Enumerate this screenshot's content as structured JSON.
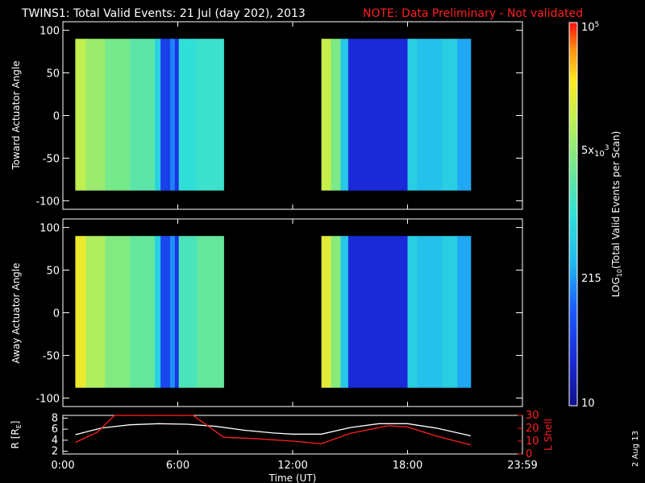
{
  "header": {
    "title": "TWINS1: Total Valid Events: 21 Jul (day 202), 2013",
    "note": "NOTE: Data Preliminary - Not validated",
    "note_color": "#ff2020"
  },
  "stamp": "2 Aug 13",
  "colors": {
    "background": "#000000",
    "axes": "#ffffff",
    "lshell": "#ff2020",
    "radius": "#ffffff"
  },
  "chart_data": [
    {
      "type": "heatmap",
      "panel": "toward",
      "ylabel": "Toward Actuator Angle",
      "ylim": [
        -110,
        110
      ],
      "y_ticks": [
        "100",
        "50",
        "0",
        "-50",
        "-100"
      ],
      "y_tick_values": [
        100,
        50,
        0,
        -50,
        -100
      ],
      "xlim_hours": [
        0,
        24
      ],
      "data_y_range": [
        -88,
        90
      ],
      "colorscale": "log10 total valid events per scan",
      "coverage_hours": [
        [
          0.65,
          8.4
        ],
        [
          13.5,
          21.3
        ]
      ],
      "columns": [
        {
          "t0": 0.65,
          "t1": 1.2,
          "v": 0.75
        },
        {
          "t0": 1.2,
          "t1": 2.2,
          "v": 0.69
        },
        {
          "t0": 2.2,
          "t1": 3.5,
          "v": 0.63
        },
        {
          "t0": 3.5,
          "t1": 4.8,
          "v": 0.58
        },
        {
          "t0": 4.8,
          "t1": 5.1,
          "v": 0.45
        },
        {
          "t0": 5.1,
          "t1": 5.6,
          "v": 0.18
        },
        {
          "t0": 5.6,
          "t1": 5.85,
          "v": 0.3
        },
        {
          "t0": 5.85,
          "t1": 6.05,
          "v": 0.15
        },
        {
          "t0": 6.05,
          "t1": 7.0,
          "v": 0.5
        },
        {
          "t0": 7.0,
          "t1": 8.4,
          "v": 0.52
        },
        {
          "t0": 13.5,
          "t1": 14.0,
          "v": 0.76
        },
        {
          "t0": 14.0,
          "t1": 14.5,
          "v": 0.64
        },
        {
          "t0": 14.5,
          "t1": 14.9,
          "v": 0.42
        },
        {
          "t0": 14.9,
          "t1": 18.0,
          "v": 0.12
        },
        {
          "t0": 18.0,
          "t1": 18.5,
          "v": 0.44
        },
        {
          "t0": 18.5,
          "t1": 19.8,
          "v": 0.4
        },
        {
          "t0": 19.8,
          "t1": 20.6,
          "v": 0.44
        },
        {
          "t0": 20.6,
          "t1": 21.3,
          "v": 0.35
        }
      ]
    },
    {
      "type": "heatmap",
      "panel": "away",
      "ylabel": "Away Actuator Angle",
      "ylim": [
        -110,
        110
      ],
      "y_ticks": [
        "100",
        "50",
        "0",
        "-50",
        "-100"
      ],
      "y_tick_values": [
        100,
        50,
        0,
        -50,
        -100
      ],
      "xlim_hours": [
        0,
        24
      ],
      "data_y_range": [
        -88,
        90
      ],
      "colorscale": "log10 total valid events per scan",
      "coverage_hours": [
        [
          0.65,
          8.4
        ],
        [
          13.5,
          21.3
        ]
      ],
      "columns": [
        {
          "t0": 0.65,
          "t1": 1.2,
          "v": 0.82
        },
        {
          "t0": 1.2,
          "t1": 2.2,
          "v": 0.72
        },
        {
          "t0": 2.2,
          "t1": 3.5,
          "v": 0.65
        },
        {
          "t0": 3.5,
          "t1": 4.8,
          "v": 0.6
        },
        {
          "t0": 4.8,
          "t1": 5.1,
          "v": 0.45
        },
        {
          "t0": 5.1,
          "t1": 5.6,
          "v": 0.2
        },
        {
          "t0": 5.6,
          "t1": 5.85,
          "v": 0.32
        },
        {
          "t0": 5.85,
          "t1": 6.05,
          "v": 0.15
        },
        {
          "t0": 6.05,
          "t1": 7.0,
          "v": 0.55
        },
        {
          "t0": 7.0,
          "t1": 8.4,
          "v": 0.6
        },
        {
          "t0": 13.5,
          "t1": 14.0,
          "v": 0.8
        },
        {
          "t0": 14.0,
          "t1": 14.5,
          "v": 0.66
        },
        {
          "t0": 14.5,
          "t1": 14.9,
          "v": 0.42
        },
        {
          "t0": 14.9,
          "t1": 18.0,
          "v": 0.12
        },
        {
          "t0": 18.0,
          "t1": 18.5,
          "v": 0.44
        },
        {
          "t0": 18.5,
          "t1": 19.8,
          "v": 0.4
        },
        {
          "t0": 19.8,
          "t1": 20.6,
          "v": 0.44
        },
        {
          "t0": 20.6,
          "t1": 21.3,
          "v": 0.35
        }
      ]
    },
    {
      "type": "line",
      "panel": "ephemeris",
      "xlabel": "Time (UT)",
      "x_ticks": [
        "0:00",
        "6:00",
        "12:00",
        "18:00",
        "23:59"
      ],
      "x_tick_hours": [
        0,
        6,
        12,
        18,
        24
      ],
      "ylabel_left": "R [R",
      "ylabel_left_sub": "E",
      "ylabel_left_end": "]",
      "ylim_left": [
        1.5,
        8.5
      ],
      "y_ticks_left": [
        "8",
        "6",
        "4",
        "2"
      ],
      "y_tick_values_left": [
        8,
        6,
        4,
        2
      ],
      "ylabel_right": "L Shell",
      "ylim_right": [
        0,
        30
      ],
      "y_ticks_right": [
        "30",
        "20",
        "10",
        "0"
      ],
      "y_tick_values_right": [
        30,
        20,
        10,
        0
      ],
      "series": [
        {
          "name": "R",
          "axis": "left",
          "x": [
            0.65,
            2,
            3.5,
            5,
            6.5,
            8,
            9.5,
            11,
            12,
            13,
            13.5,
            15,
            16.5,
            18,
            19.5,
            21.3
          ],
          "y": [
            5.0,
            6.2,
            6.8,
            7.0,
            6.9,
            6.5,
            5.8,
            5.3,
            5.1,
            5.1,
            5.1,
            6.3,
            7.0,
            7.0,
            6.2,
            4.8
          ]
        },
        {
          "name": "L Shell",
          "axis": "right",
          "x": [
            0.65,
            1.8,
            2.7,
            6.8,
            8.4,
            10,
            12,
            13.5,
            15,
            17,
            18,
            19.5,
            21.3
          ],
          "y": [
            9,
            17,
            30,
            30,
            13,
            12,
            10,
            8,
            16,
            22,
            21,
            14,
            7
          ]
        }
      ]
    }
  ],
  "colorbar": {
    "label": "LOG",
    "label_sub": "10",
    "label_rest": "(Total Valid Events per Scan)",
    "tick_top_base": "10",
    "tick_top_exp": "5",
    "tick_mid_base": "5x",
    "tick_mid_base2": "10",
    "tick_mid_exp": "3",
    "tick_lower": "215",
    "tick_bottom": "10"
  }
}
